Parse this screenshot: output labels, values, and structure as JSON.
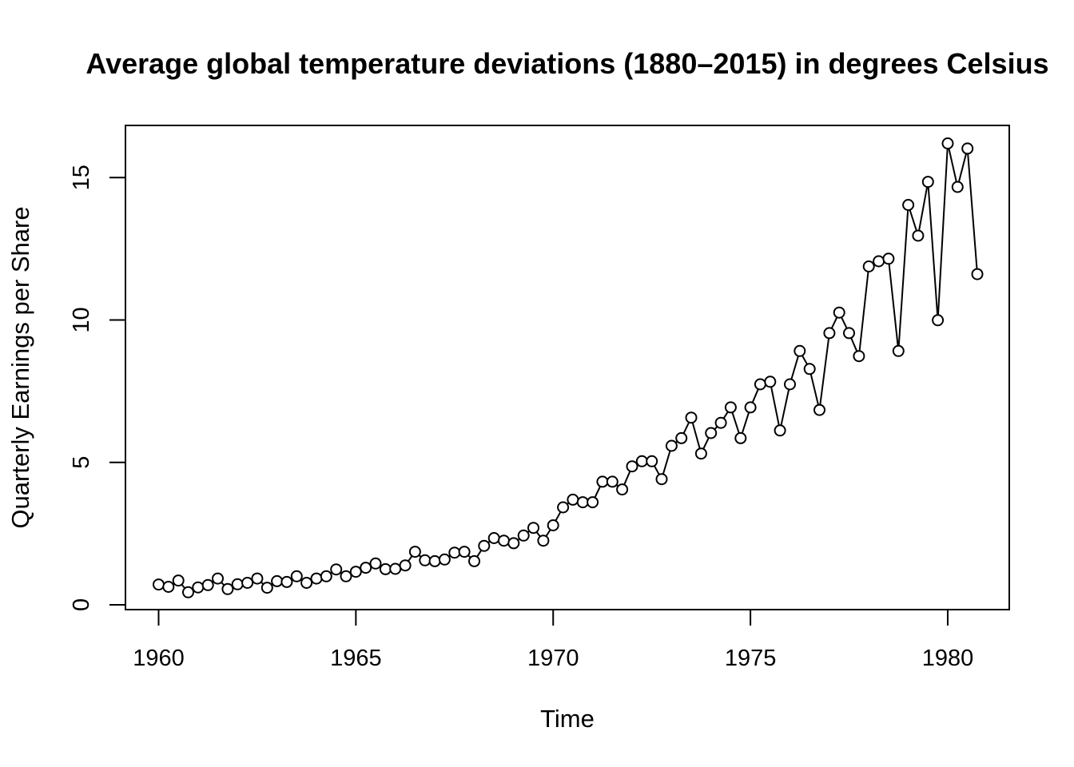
{
  "chart_data": {
    "type": "line",
    "title": "Average global temperature deviations (1880–2015) in degrees Celsius",
    "xlabel": "Time",
    "ylabel": "Quarterly Earnings per Share",
    "xlim": [
      1959.16,
      1981.56
    ],
    "ylim": [
      -0.17,
      16.83
    ],
    "x_ticks": [
      1960,
      1965,
      1970,
      1975,
      1980
    ],
    "x_tick_labels": [
      "1960",
      "1965",
      "1970",
      "1975",
      "1980"
    ],
    "y_ticks": [
      0,
      5,
      10,
      15
    ],
    "y_tick_labels": [
      "0",
      "5",
      "10",
      "15"
    ],
    "grid": false,
    "legend": "none",
    "marker": "open-circle",
    "series_color": "#000000",
    "x_start": 1960,
    "x_step": 0.25,
    "values": [
      0.71,
      0.63,
      0.85,
      0.44,
      0.61,
      0.69,
      0.92,
      0.55,
      0.72,
      0.77,
      0.92,
      0.6,
      0.83,
      0.8,
      1.0,
      0.77,
      0.92,
      1.0,
      1.24,
      1.0,
      1.16,
      1.3,
      1.45,
      1.25,
      1.26,
      1.38,
      1.86,
      1.56,
      1.53,
      1.59,
      1.83,
      1.86,
      1.53,
      2.07,
      2.34,
      2.25,
      2.16,
      2.43,
      2.7,
      2.25,
      2.79,
      3.42,
      3.69,
      3.6,
      3.6,
      4.32,
      4.32,
      4.05,
      4.86,
      5.04,
      5.04,
      4.41,
      5.58,
      5.85,
      6.57,
      5.31,
      6.03,
      6.39,
      6.93,
      5.85,
      6.93,
      7.74,
      7.83,
      6.12,
      7.74,
      8.91,
      8.28,
      6.84,
      9.54,
      10.26,
      9.54,
      8.73,
      11.88,
      12.06,
      12.15,
      8.91,
      14.04,
      12.96,
      14.85,
      9.99,
      16.2,
      14.67,
      16.02,
      11.61
    ]
  }
}
